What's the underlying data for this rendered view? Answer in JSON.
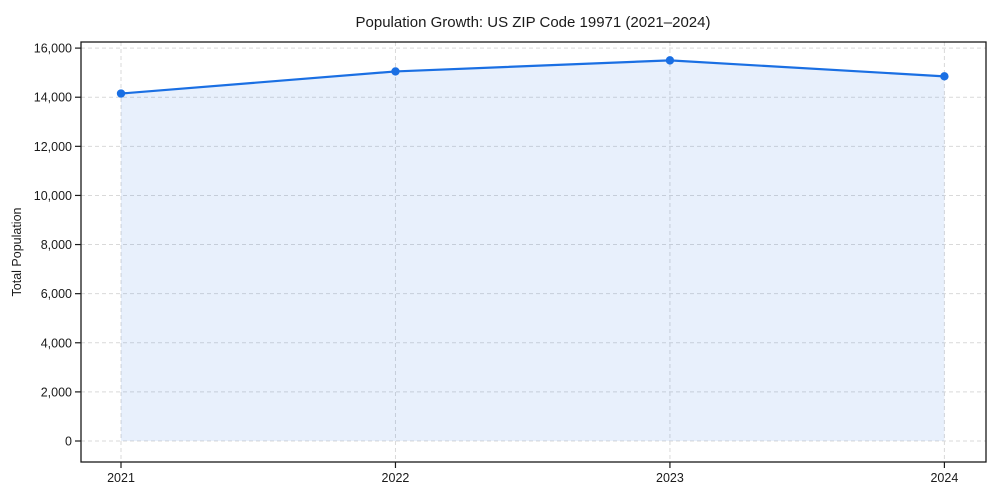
{
  "chart_data": {
    "type": "area",
    "title": "Population Growth: US ZIP Code 19971 (2021–2024)",
    "ylabel": "Total Population",
    "categories": [
      "2021",
      "2022",
      "2023",
      "2024"
    ],
    "series": [
      {
        "name": "Total Population",
        "values": [
          14150,
          15050,
          15500,
          14850
        ]
      }
    ],
    "ylim": [
      0,
      16000
    ],
    "ytick_step": 2000,
    "ytick_labels": [
      "0",
      "2,000",
      "4,000",
      "6,000",
      "8,000",
      "10,000",
      "12,000",
      "14,000",
      "16,000"
    ],
    "grid": true,
    "grid_style": "dashed",
    "legend": "none",
    "marker": "circle",
    "colors": {
      "line": "#1a6fe3",
      "marker": "#1a6fe3",
      "area_fill": "#1a6fe3",
      "area_alpha": 0.1,
      "grid": "#d9d9d9",
      "spine": "#1a1a1a",
      "text": "#1a1a1a",
      "background": "#ffffff"
    }
  }
}
